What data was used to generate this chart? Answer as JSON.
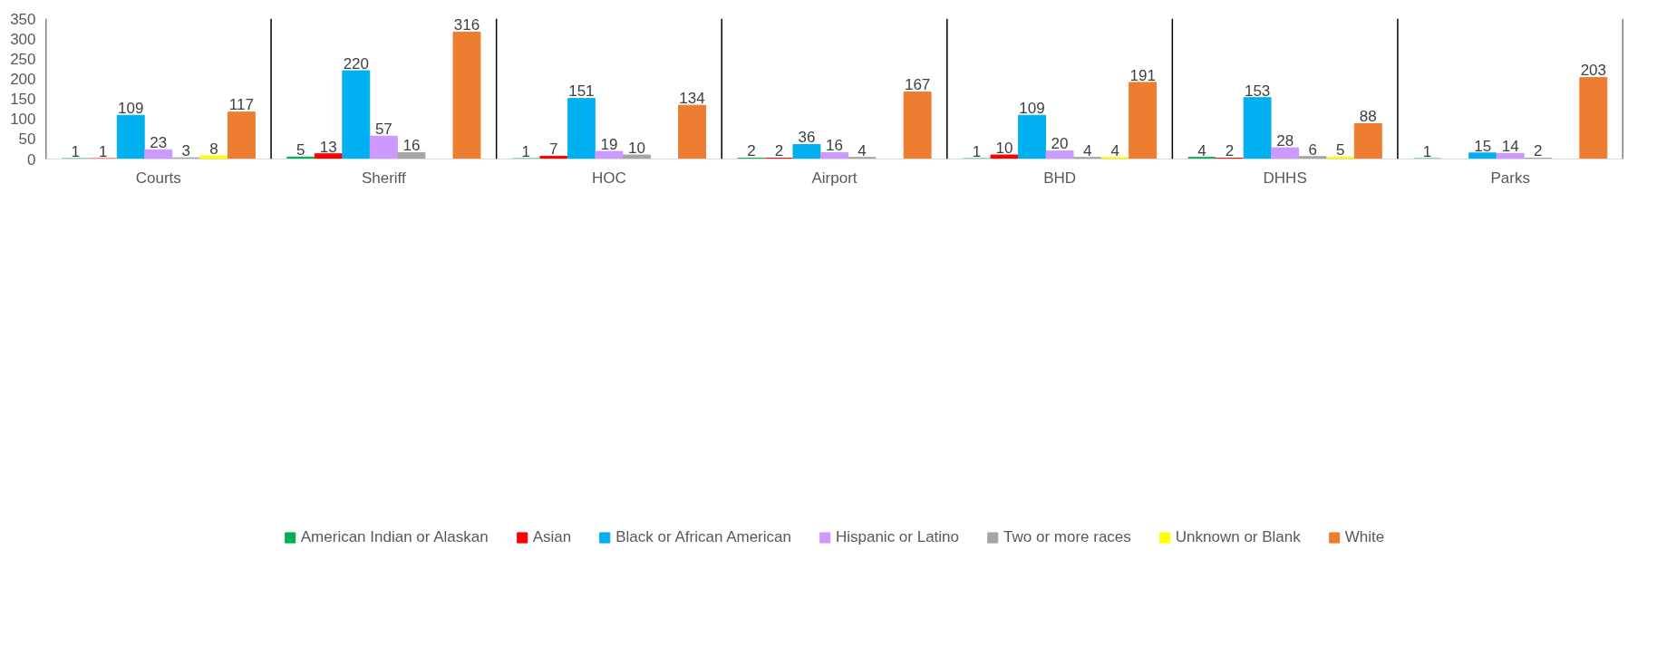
{
  "chart_data": {
    "type": "bar",
    "categories": [
      "Courts",
      "Sheriff",
      "HOC",
      "Airport",
      "BHD",
      "DHHS",
      "Parks"
    ],
    "series": [
      {
        "name": "American Indian or Alaskan",
        "color": "#00b050",
        "values": [
          1,
          5,
          1,
          2,
          1,
          4,
          1
        ]
      },
      {
        "name": "Asian",
        "color": "#ff0000",
        "values": [
          1,
          13,
          7,
          2,
          10,
          2,
          null
        ]
      },
      {
        "name": "Black or African American",
        "color": "#00b0f0",
        "values": [
          109,
          220,
          151,
          36,
          109,
          153,
          15
        ]
      },
      {
        "name": "Hispanic or Latino",
        "color": "#cc99ff",
        "values": [
          23,
          57,
          19,
          16,
          20,
          28,
          14
        ]
      },
      {
        "name": "Two or more races",
        "color": "#a5a5a5",
        "values": [
          3,
          16,
          10,
          4,
          4,
          6,
          2
        ]
      },
      {
        "name": "Unknown or Blank",
        "color": "#ffff00",
        "values": [
          8,
          null,
          null,
          null,
          4,
          5,
          null
        ]
      },
      {
        "name": "White",
        "color": "#ed7d31",
        "values": [
          117,
          316,
          134,
          167,
          191,
          88,
          203
        ]
      }
    ],
    "ylim": [
      0,
      350
    ],
    "yticks": [
      0,
      50,
      100,
      150,
      200,
      250,
      300,
      350
    ],
    "grid": "x",
    "legend": "bottom",
    "data_labels": true
  }
}
